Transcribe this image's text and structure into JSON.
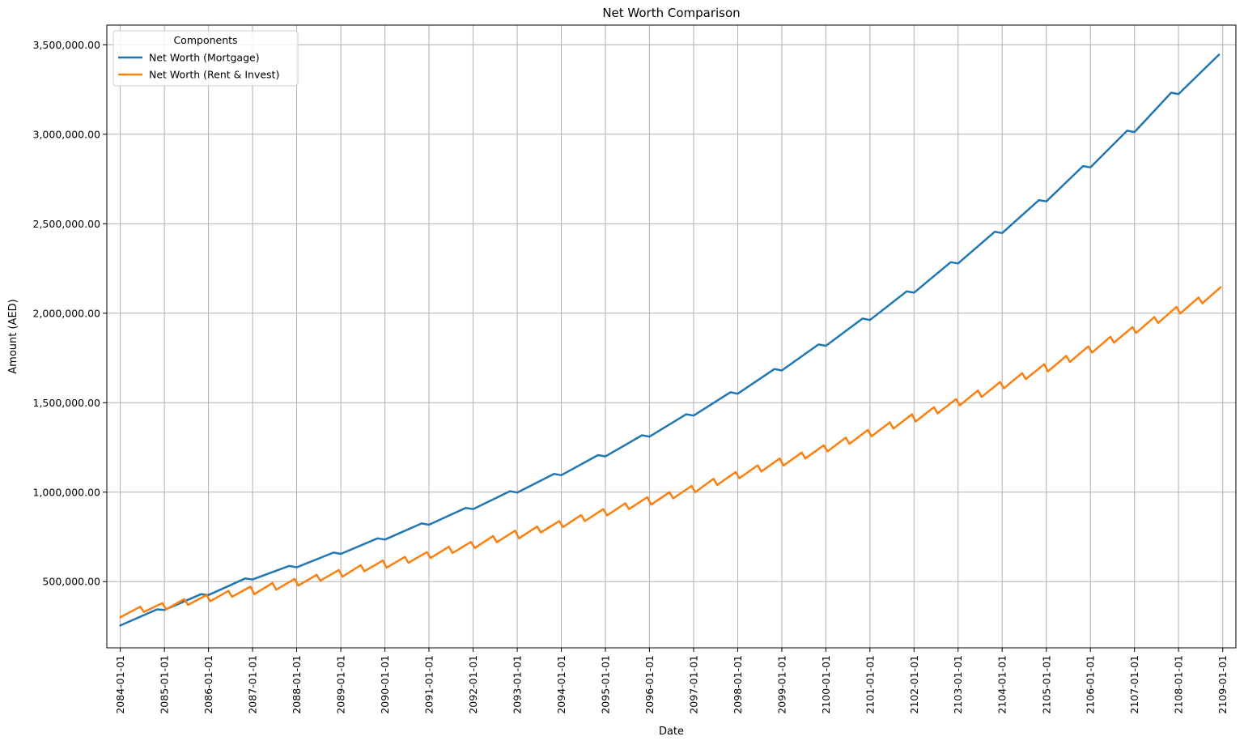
{
  "chart_data": {
    "type": "line",
    "title": "Net Worth Comparison",
    "xlabel": "Date",
    "ylabel": "Amount (AED)",
    "x_ticks": [
      "2084-01-01",
      "2085-01-01",
      "2086-01-01",
      "2087-01-01",
      "2088-01-01",
      "2089-01-01",
      "2090-01-01",
      "2091-01-01",
      "2092-01-01",
      "2093-01-01",
      "2094-01-01",
      "2095-01-01",
      "2096-01-01",
      "2097-01-01",
      "2098-01-01",
      "2099-01-01",
      "2100-01-01",
      "2101-01-01",
      "2102-01-01",
      "2103-01-01",
      "2104-01-01",
      "2105-01-01",
      "2106-01-01",
      "2107-01-01",
      "2108-01-01",
      "2109-01-01"
    ],
    "y_ticks": [
      500000,
      1000000,
      1500000,
      2000000,
      2500000,
      3000000,
      3500000
    ],
    "y_tick_labels": [
      "500,000.00",
      "1,000,000.00",
      "1,500,000.00",
      "2,000,000.00",
      "2,500,000.00",
      "3,000,000.00",
      "3,500,000.00"
    ],
    "xlim": [
      "2083-09-12",
      "2109-04-20"
    ],
    "ylim": [
      130000,
      3610000
    ],
    "grid": true,
    "legend": {
      "title": "Components",
      "placement": "upper-left"
    },
    "series": [
      {
        "name": "Net Worth (Mortgage)",
        "color": "#1f77b4",
        "points": [
          [
            "2084-01-01",
            255000
          ],
          [
            "2084-11-01",
            345000
          ],
          [
            "2085-01-01",
            342000
          ],
          [
            "2085-11-01",
            430000
          ],
          [
            "2086-01-01",
            425000
          ],
          [
            "2086-11-01",
            518000
          ],
          [
            "2087-01-01",
            512000
          ],
          [
            "2087-11-01",
            588000
          ],
          [
            "2088-01-01",
            580000
          ],
          [
            "2088-11-01",
            662000
          ],
          [
            "2089-01-01",
            655000
          ],
          [
            "2089-11-01",
            742000
          ],
          [
            "2090-01-01",
            735000
          ],
          [
            "2090-11-01",
            825000
          ],
          [
            "2091-01-01",
            818000
          ],
          [
            "2091-11-01",
            912000
          ],
          [
            "2092-01-01",
            905000
          ],
          [
            "2092-11-01",
            1005000
          ],
          [
            "2093-01-01",
            998000
          ],
          [
            "2093-11-01",
            1102000
          ],
          [
            "2094-01-01",
            1095000
          ],
          [
            "2094-11-01",
            1207000
          ],
          [
            "2095-01-01",
            1200000
          ],
          [
            "2095-11-01",
            1318000
          ],
          [
            "2096-01-01",
            1310000
          ],
          [
            "2096-11-01",
            1435000
          ],
          [
            "2097-01-01",
            1428000
          ],
          [
            "2097-11-01",
            1558000
          ],
          [
            "2098-01-01",
            1550000
          ],
          [
            "2098-11-01",
            1688000
          ],
          [
            "2099-01-01",
            1680000
          ],
          [
            "2099-11-01",
            1825000
          ],
          [
            "2100-01-01",
            1818000
          ],
          [
            "2100-11-01",
            1970000
          ],
          [
            "2101-01-01",
            1962000
          ],
          [
            "2101-11-01",
            2122000
          ],
          [
            "2102-01-01",
            2115000
          ],
          [
            "2102-11-01",
            2285000
          ],
          [
            "2103-01-01",
            2278000
          ],
          [
            "2103-11-01",
            2455000
          ],
          [
            "2104-01-01",
            2448000
          ],
          [
            "2104-11-01",
            2632000
          ],
          [
            "2105-01-01",
            2625000
          ],
          [
            "2105-11-01",
            2822000
          ],
          [
            "2106-01-01",
            2815000
          ],
          [
            "2106-11-01",
            3020000
          ],
          [
            "2107-01-01",
            3012000
          ],
          [
            "2107-11-01",
            3232000
          ],
          [
            "2108-01-01",
            3225000
          ],
          [
            "2108-12-01",
            3445000
          ]
        ]
      },
      {
        "name": "Net Worth (Rent & Invest)",
        "color": "#ff7f0e",
        "points": [
          [
            "2084-01-01",
            300000
          ],
          [
            "2084-06-15",
            360000
          ],
          [
            "2084-07-15",
            330000
          ],
          [
            "2084-12-15",
            380000
          ],
          [
            "2085-01-15",
            345000
          ],
          [
            "2085-06-15",
            402000
          ],
          [
            "2085-07-15",
            370000
          ],
          [
            "2085-12-15",
            425000
          ],
          [
            "2086-01-15",
            390000
          ],
          [
            "2086-06-15",
            448000
          ],
          [
            "2086-07-15",
            415000
          ],
          [
            "2086-12-15",
            472000
          ],
          [
            "2087-01-15",
            430000
          ],
          [
            "2087-06-15",
            492000
          ],
          [
            "2087-07-15",
            455000
          ],
          [
            "2087-12-15",
            515000
          ],
          [
            "2088-01-15",
            478000
          ],
          [
            "2088-06-15",
            538000
          ],
          [
            "2088-07-15",
            505000
          ],
          [
            "2088-12-15",
            565000
          ],
          [
            "2089-01-15",
            528000
          ],
          [
            "2089-06-15",
            592000
          ],
          [
            "2089-07-15",
            558000
          ],
          [
            "2089-12-15",
            618000
          ],
          [
            "2090-01-15",
            578000
          ],
          [
            "2090-06-15",
            638000
          ],
          [
            "2090-07-15",
            605000
          ],
          [
            "2090-12-15",
            665000
          ],
          [
            "2091-01-15",
            632000
          ],
          [
            "2091-06-15",
            695000
          ],
          [
            "2091-07-15",
            660000
          ],
          [
            "2091-12-15",
            722000
          ],
          [
            "2092-01-15",
            688000
          ],
          [
            "2092-06-15",
            755000
          ],
          [
            "2092-07-15",
            720000
          ],
          [
            "2092-12-15",
            785000
          ],
          [
            "2093-01-15",
            742000
          ],
          [
            "2093-06-15",
            808000
          ],
          [
            "2093-07-15",
            775000
          ],
          [
            "2093-12-15",
            838000
          ],
          [
            "2094-01-15",
            805000
          ],
          [
            "2094-06-15",
            872000
          ],
          [
            "2094-07-15",
            838000
          ],
          [
            "2094-12-15",
            905000
          ],
          [
            "2095-01-15",
            870000
          ],
          [
            "2095-06-15",
            938000
          ],
          [
            "2095-07-15",
            905000
          ],
          [
            "2095-12-15",
            972000
          ],
          [
            "2096-01-15",
            930000
          ],
          [
            "2096-06-15",
            1000000
          ],
          [
            "2096-07-15",
            965000
          ],
          [
            "2096-12-15",
            1035000
          ],
          [
            "2097-01-15",
            1000000
          ],
          [
            "2097-06-15",
            1075000
          ],
          [
            "2097-07-15",
            1040000
          ],
          [
            "2097-12-15",
            1112000
          ],
          [
            "2098-01-15",
            1078000
          ],
          [
            "2098-06-15",
            1150000
          ],
          [
            "2098-07-15",
            1115000
          ],
          [
            "2098-12-15",
            1188000
          ],
          [
            "2099-01-15",
            1148000
          ],
          [
            "2099-06-15",
            1222000
          ],
          [
            "2099-07-15",
            1188000
          ],
          [
            "2099-12-15",
            1262000
          ],
          [
            "2100-01-15",
            1228000
          ],
          [
            "2100-06-15",
            1305000
          ],
          [
            "2100-07-15",
            1270000
          ],
          [
            "2100-12-15",
            1348000
          ],
          [
            "2101-01-15",
            1312000
          ],
          [
            "2101-06-15",
            1390000
          ],
          [
            "2101-07-15",
            1355000
          ],
          [
            "2101-12-15",
            1435000
          ],
          [
            "2102-01-15",
            1395000
          ],
          [
            "2102-06-15",
            1475000
          ],
          [
            "2102-07-15",
            1440000
          ],
          [
            "2102-12-15",
            1520000
          ],
          [
            "2103-01-15",
            1485000
          ],
          [
            "2103-06-15",
            1568000
          ],
          [
            "2103-07-15",
            1532000
          ],
          [
            "2103-12-15",
            1615000
          ],
          [
            "2104-01-15",
            1580000
          ],
          [
            "2104-06-15",
            1665000
          ],
          [
            "2104-07-15",
            1632000
          ],
          [
            "2104-12-15",
            1715000
          ],
          [
            "2105-01-15",
            1675000
          ],
          [
            "2105-06-15",
            1762000
          ],
          [
            "2105-07-15",
            1728000
          ],
          [
            "2105-12-15",
            1815000
          ],
          [
            "2106-01-15",
            1780000
          ],
          [
            "2106-06-15",
            1868000
          ],
          [
            "2106-07-15",
            1835000
          ],
          [
            "2106-12-15",
            1922000
          ],
          [
            "2107-01-15",
            1890000
          ],
          [
            "2107-06-15",
            1978000
          ],
          [
            "2107-07-15",
            1945000
          ],
          [
            "2107-12-15",
            2035000
          ],
          [
            "2108-01-15",
            1998000
          ],
          [
            "2108-06-15",
            2088000
          ],
          [
            "2108-07-15",
            2055000
          ],
          [
            "2108-12-15",
            2145000
          ]
        ]
      }
    ]
  }
}
